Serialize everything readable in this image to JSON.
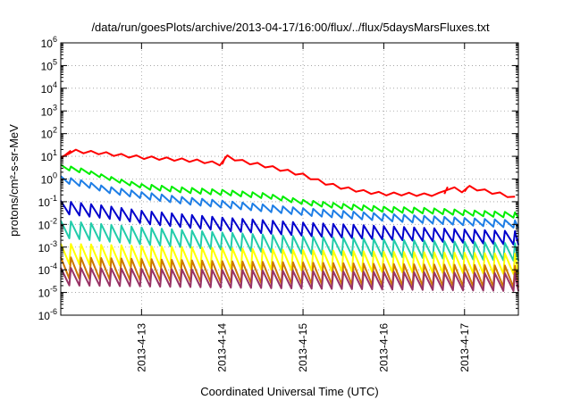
{
  "chart_data": {
    "type": "line",
    "title": "/data/run/goesPlots/archive/2013-04-17/16:00/flux/../flux/5daysMarsFluxes.txt",
    "xlabel": "Coordinated Universal Time (UTC)",
    "ylabel": "protons/cm²-s-sr-MeV",
    "yscale": "log",
    "ylim": [
      1e-06,
      1000000.0
    ],
    "xlim": [
      "2013-04-12 00:00",
      "2013-04-17 16:00"
    ],
    "grid": true,
    "legend": "none",
    "y_ticks": [
      {
        "value": 1000000.0,
        "base": "10",
        "exp": "6"
      },
      {
        "value": 100000.0,
        "base": "10",
        "exp": "5"
      },
      {
        "value": 10000.0,
        "base": "10",
        "exp": "4"
      },
      {
        "value": 1000.0,
        "base": "10",
        "exp": "3"
      },
      {
        "value": 100.0,
        "base": "10",
        "exp": "2"
      },
      {
        "value": 10.0,
        "base": "10",
        "exp": "1"
      },
      {
        "value": 1.0,
        "base": "10",
        "exp": "0"
      },
      {
        "value": 0.1,
        "base": "10",
        "exp": "-1"
      },
      {
        "value": 0.01,
        "base": "10",
        "exp": "-2"
      },
      {
        "value": 0.001,
        "base": "10",
        "exp": "-3"
      },
      {
        "value": 0.0001,
        "base": "10",
        "exp": "-4"
      },
      {
        "value": 1e-05,
        "base": "10",
        "exp": "-5"
      },
      {
        "value": 1e-06,
        "base": "10",
        "exp": "-6"
      }
    ],
    "x_ticks": [
      "2013-4-13",
      "2013-4-14",
      "2013-4-15",
      "2013-4-16",
      "2013-4-17"
    ],
    "series": [
      {
        "color": "#ff0000",
        "sawtooth": false,
        "x": [
          "2013-04-12 00:00",
          "2013-04-12 03:00",
          "2013-04-12 06:00",
          "2013-04-12 12:00",
          "2013-04-12 18:00",
          "2013-04-13 00:00",
          "2013-04-13 06:00",
          "2013-04-13 12:00",
          "2013-04-13 18:00",
          "2013-04-14 00:00",
          "2013-04-14 01:00",
          "2013-04-14 06:00",
          "2013-04-14 12:00",
          "2013-04-14 18:00",
          "2013-04-15 00:00",
          "2013-04-15 06:00",
          "2013-04-15 12:00",
          "2013-04-15 18:00",
          "2013-04-16 00:00",
          "2013-04-16 06:00",
          "2013-04-16 12:00",
          "2013-04-16 18:00",
          "2013-04-16 19:00",
          "2013-04-17 00:00",
          "2013-04-17 01:00",
          "2013-04-17 06:00",
          "2013-04-17 12:00",
          "2013-04-17 16:00"
        ],
        "y": [
          8,
          18,
          16,
          14,
          11,
          9,
          8,
          7,
          6,
          4.5,
          10,
          6,
          4,
          2.5,
          1.5,
          0.7,
          0.4,
          0.28,
          0.22,
          0.22,
          0.2,
          0.22,
          0.45,
          0.28,
          0.45,
          0.3,
          0.2,
          0.13
        ],
        "wiggle": 1.35
      },
      {
        "color": "#00ee00",
        "sawtooth": true,
        "x": [
          "2013-04-12 00:00",
          "2013-04-12 06:00",
          "2013-04-12 12:00",
          "2013-04-12 18:00",
          "2013-04-13 00:00",
          "2013-04-13 12:00",
          "2013-04-14 00:00",
          "2013-04-14 12:00",
          "2013-04-15 00:00",
          "2013-04-15 12:00",
          "2013-04-16 00:00",
          "2013-04-16 12:00",
          "2013-04-17 00:00",
          "2013-04-17 16:00"
        ],
        "y": [
          3.2,
          2.2,
          1.2,
          0.7,
          0.45,
          0.32,
          0.25,
          0.18,
          0.09,
          0.06,
          0.045,
          0.04,
          0.032,
          0.025
        ],
        "amp": 1.8
      },
      {
        "color": "#1e7ee6",
        "sawtooth": true,
        "x": [
          "2013-04-12 00:00",
          "2013-04-12 06:00",
          "2013-04-12 12:00",
          "2013-04-13 00:00",
          "2013-04-13 12:00",
          "2013-04-14 00:00",
          "2013-04-15 00:00",
          "2013-04-16 00:00",
          "2013-04-17 00:00",
          "2013-04-17 16:00"
        ],
        "y": [
          0.9,
          0.6,
          0.35,
          0.18,
          0.11,
          0.075,
          0.035,
          0.02,
          0.013,
          0.01
        ],
        "amp": 2.2
      },
      {
        "color": "#0000cc",
        "sawtooth": true,
        "x": [
          "2013-04-12 00:00",
          "2013-04-12 12:00",
          "2013-04-13 00:00",
          "2013-04-14 00:00",
          "2013-04-15 00:00",
          "2013-04-16 00:00",
          "2013-04-17 00:00",
          "2013-04-17 16:00"
        ],
        "y": [
          0.055,
          0.035,
          0.02,
          0.01,
          0.006,
          0.0042,
          0.003,
          0.0025
        ],
        "amp": 4.0
      },
      {
        "color": "#22ccaa",
        "sawtooth": true,
        "x": [
          "2013-04-12 00:00",
          "2013-04-13 00:00",
          "2013-04-14 00:00",
          "2013-04-15 00:00",
          "2013-04-16 00:00",
          "2013-04-17 00:00",
          "2013-04-17 16:00"
        ],
        "y": [
          0.006,
          0.003,
          0.0018,
          0.0012,
          0.0009,
          0.0007,
          0.0006
        ],
        "amp": 6.0
      },
      {
        "color": "#ffff00",
        "sawtooth": true,
        "x": [
          "2013-04-12 00:00",
          "2013-04-13 00:00",
          "2013-04-14 00:00",
          "2013-04-15 00:00",
          "2013-04-16 00:00",
          "2013-04-17 00:00",
          "2013-04-17 16:00"
        ],
        "y": [
          0.0005,
          0.0004,
          0.00032,
          0.00026,
          0.00022,
          0.0002,
          0.00018
        ],
        "amp": 8.0
      },
      {
        "color": "#cc7700",
        "sawtooth": true,
        "x": [
          "2013-04-12 00:00",
          "2013-04-13 00:00",
          "2013-04-14 00:00",
          "2013-04-15 00:00",
          "2013-04-16 00:00",
          "2013-04-17 00:00",
          "2013-04-17 16:00"
        ],
        "y": [
          0.00012,
          0.0001,
          8e-05,
          7e-05,
          6e-05,
          5.5e-05,
          5e-05
        ],
        "amp": 9.0
      },
      {
        "color": "#993366",
        "sawtooth": true,
        "x": [
          "2013-04-12 00:00",
          "2013-04-13 00:00",
          "2013-04-14 00:00",
          "2013-04-15 00:00",
          "2013-04-16 00:00",
          "2013-04-17 00:00",
          "2013-04-17 16:00"
        ],
        "y": [
          5e-05,
          4.5e-05,
          4e-05,
          3.6e-05,
          3.3e-05,
          3e-05,
          2.8e-05
        ],
        "amp": 6.0
      }
    ],
    "sawtooth_period_hours": 3
  }
}
